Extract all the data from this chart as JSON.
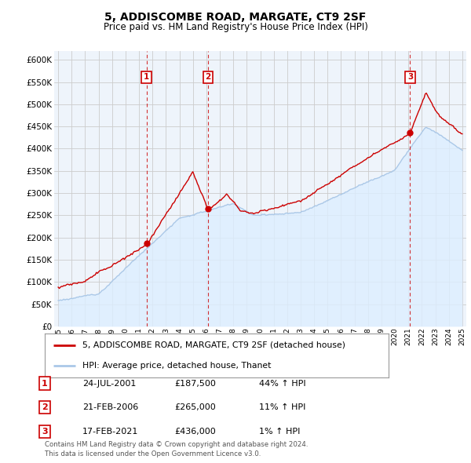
{
  "title": "5, ADDISCOMBE ROAD, MARGATE, CT9 2SF",
  "subtitle": "Price paid vs. HM Land Registry's House Price Index (HPI)",
  "legend_label_red": "5, ADDISCOMBE ROAD, MARGATE, CT9 2SF (detached house)",
  "legend_label_blue": "HPI: Average price, detached house, Thanet",
  "transactions": [
    {
      "num": 1,
      "date": "24-JUL-2001",
      "price": "£187,500",
      "pct": "44% ↑ HPI",
      "year": 2001.56
    },
    {
      "num": 2,
      "date": "21-FEB-2006",
      "price": "£265,000",
      "pct": "11% ↑ HPI",
      "year": 2006.13
    },
    {
      "num": 3,
      "date": "17-FEB-2021",
      "price": "£436,000",
      "pct": "1% ↑ HPI",
      "year": 2021.13
    }
  ],
  "transaction_values": [
    187500,
    265000,
    436000
  ],
  "footer": "Contains HM Land Registry data © Crown copyright and database right 2024.\nThis data is licensed under the Open Government Licence v3.0.",
  "ylim": [
    0,
    620000
  ],
  "yticks": [
    0,
    50000,
    100000,
    150000,
    200000,
    250000,
    300000,
    350000,
    400000,
    450000,
    500000,
    550000,
    600000
  ],
  "red_color": "#cc0000",
  "blue_color": "#aac8e8",
  "blue_fill_color": "#ddeeff",
  "grid_color": "#cccccc",
  "background_color": "#ffffff",
  "chart_bg_color": "#eef4fb"
}
